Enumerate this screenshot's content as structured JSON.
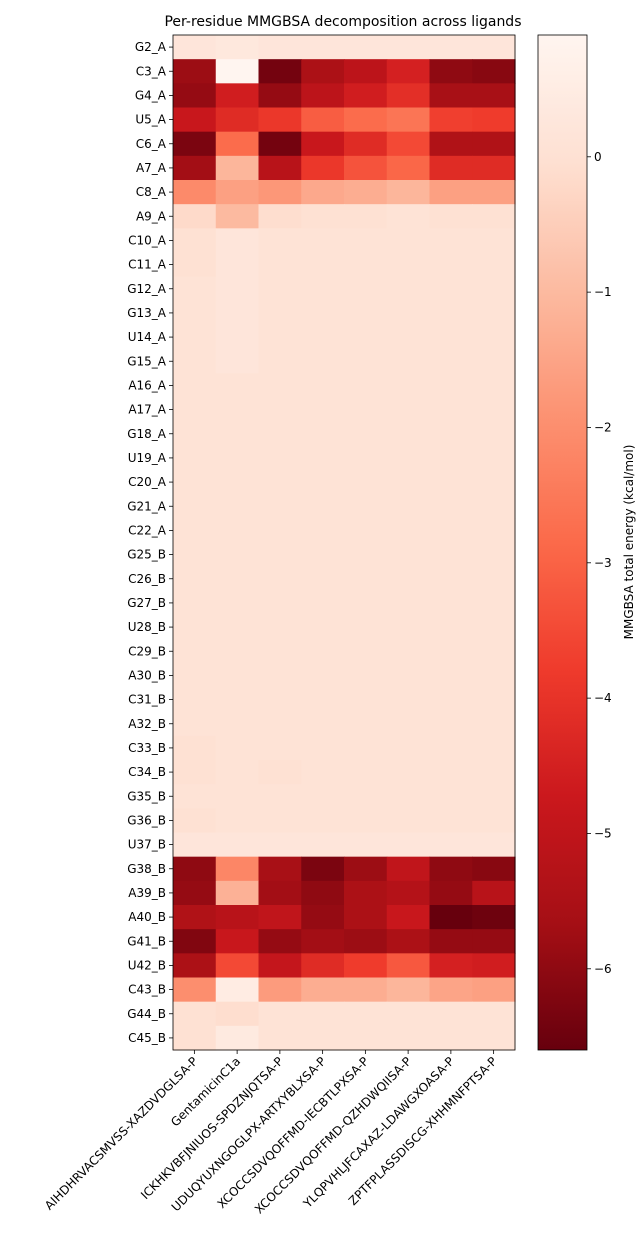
{
  "chart_data": {
    "type": "heatmap",
    "title": "Per-residue MMGBSA decomposition across ligands",
    "colorbar_label": "MMGBSA total energy (kcal/mol)",
    "colormap": "Reds_r",
    "vmin": -6.6,
    "vmax": 0.9,
    "colorbar_ticks": [
      0,
      -1,
      -2,
      -3,
      -4,
      -5,
      -6
    ],
    "colorbar_tick_labels": [
      "0",
      "−1",
      "−2",
      "−3",
      "−4",
      "−5",
      "−6"
    ],
    "columns": [
      "AIHDHRVACSMVSS-XAZDVDGLSA-P",
      "GentamicinC1a",
      "ICKHKVBFJNIUOS-SPDZNJQTSA-P",
      "UDUQYUXNGOGLPX-ARTXYBLXSA-P",
      "XCOCCSDVQOFFMD-IECBTLPXSA-P",
      "XCOCCSDVQOFFMD-QZHDWQIISA-P",
      "YLQPVHLJFCAXAZ-LDAWGXOASA-P",
      "ZPTFPLASSDISCG-XHHMNFPTSA-P"
    ],
    "rows": [
      "G2_A",
      "C3_A",
      "G4_A",
      "U5_A",
      "C6_A",
      "A7_A",
      "C8_A",
      "A9_A",
      "C10_A",
      "C11_A",
      "G12_A",
      "G13_A",
      "U14_A",
      "G15_A",
      "A16_A",
      "A17_A",
      "G18_A",
      "U19_A",
      "C20_A",
      "G21_A",
      "C22_A",
      "G25_B",
      "C26_B",
      "G27_B",
      "U28_B",
      "C29_B",
      "A30_B",
      "C31_B",
      "A32_B",
      "C33_B",
      "C34_B",
      "G35_B",
      "G36_B",
      "U37_B",
      "G38_B",
      "A39_B",
      "A40_B",
      "G41_B",
      "U42_B",
      "C43_B",
      "G44_B",
      "C45_B"
    ],
    "values": [
      [
        0.2,
        0.3,
        0.2,
        0.2,
        0.2,
        0.2,
        0.2,
        0.2
      ],
      [
        -5.8,
        0.9,
        -6.4,
        -5.5,
        -5.1,
        -4.5,
        -6.0,
        -6.1
      ],
      [
        -5.9,
        -4.6,
        -5.9,
        -5.1,
        -4.6,
        -4.1,
        -5.6,
        -5.6
      ],
      [
        -4.8,
        -4.2,
        -3.9,
        -3.1,
        -2.8,
        -2.6,
        -3.7,
        -3.8
      ],
      [
        -6.3,
        -2.8,
        -6.4,
        -4.8,
        -4.2,
        -3.5,
        -5.4,
        -5.4
      ],
      [
        -5.7,
        -1.1,
        -5.2,
        -3.9,
        -3.3,
        -2.9,
        -4.2,
        -4.2
      ],
      [
        -2.1,
        -1.6,
        -1.8,
        -1.4,
        -1.3,
        -1.1,
        -1.6,
        -1.6
      ],
      [
        -0.2,
        -1.0,
        -0.1,
        0.0,
        0.0,
        0.1,
        0.0,
        0.0
      ],
      [
        0.0,
        0.2,
        0.1,
        0.1,
        0.1,
        0.1,
        0.1,
        0.1
      ],
      [
        0.0,
        0.2,
        0.1,
        0.1,
        0.1,
        0.1,
        0.1,
        0.1
      ],
      [
        0.1,
        0.2,
        0.1,
        0.1,
        0.1,
        0.1,
        0.1,
        0.1
      ],
      [
        0.1,
        0.2,
        0.1,
        0.1,
        0.1,
        0.1,
        0.1,
        0.1
      ],
      [
        0.1,
        0.2,
        0.1,
        0.1,
        0.1,
        0.1,
        0.1,
        0.1
      ],
      [
        0.1,
        0.2,
        0.1,
        0.1,
        0.1,
        0.1,
        0.1,
        0.1
      ],
      [
        0.1,
        0.1,
        0.1,
        0.1,
        0.1,
        0.1,
        0.1,
        0.1
      ],
      [
        0.1,
        0.1,
        0.1,
        0.1,
        0.1,
        0.1,
        0.1,
        0.1
      ],
      [
        0.1,
        0.1,
        0.1,
        0.1,
        0.1,
        0.1,
        0.1,
        0.1
      ],
      [
        0.1,
        0.1,
        0.1,
        0.1,
        0.1,
        0.1,
        0.1,
        0.1
      ],
      [
        0.1,
        0.1,
        0.1,
        0.1,
        0.1,
        0.1,
        0.1,
        0.1
      ],
      [
        0.1,
        0.1,
        0.1,
        0.1,
        0.1,
        0.1,
        0.1,
        0.1
      ],
      [
        0.1,
        0.1,
        0.1,
        0.1,
        0.1,
        0.1,
        0.1,
        0.1
      ],
      [
        0.1,
        0.1,
        0.1,
        0.1,
        0.1,
        0.1,
        0.1,
        0.1
      ],
      [
        0.1,
        0.1,
        0.1,
        0.1,
        0.1,
        0.1,
        0.1,
        0.1
      ],
      [
        0.1,
        0.1,
        0.1,
        0.1,
        0.1,
        0.1,
        0.1,
        0.1
      ],
      [
        0.1,
        0.1,
        0.1,
        0.1,
        0.1,
        0.1,
        0.1,
        0.1
      ],
      [
        0.1,
        0.1,
        0.1,
        0.1,
        0.1,
        0.1,
        0.1,
        0.1
      ],
      [
        0.1,
        0.1,
        0.1,
        0.1,
        0.1,
        0.1,
        0.1,
        0.1
      ],
      [
        0.1,
        0.1,
        0.1,
        0.1,
        0.1,
        0.1,
        0.1,
        0.1
      ],
      [
        0.1,
        0.1,
        0.1,
        0.1,
        0.1,
        0.1,
        0.1,
        0.1
      ],
      [
        0.0,
        0.1,
        0.1,
        0.1,
        0.1,
        0.1,
        0.1,
        0.1
      ],
      [
        0.0,
        0.1,
        0.0,
        0.1,
        0.1,
        0.1,
        0.1,
        0.1
      ],
      [
        0.1,
        0.1,
        0.1,
        0.1,
        0.1,
        0.1,
        0.1,
        0.1
      ],
      [
        0.0,
        0.1,
        0.1,
        0.1,
        0.1,
        0.1,
        0.1,
        0.1
      ],
      [
        0.2,
        0.2,
        0.2,
        0.2,
        0.2,
        0.2,
        0.2,
        0.2
      ],
      [
        -6.0,
        -2.2,
        -5.6,
        -6.3,
        -5.8,
        -5.0,
        -6.0,
        -6.1
      ],
      [
        -5.9,
        -1.2,
        -5.7,
        -6.0,
        -5.5,
        -5.3,
        -5.9,
        -5.2
      ],
      [
        -5.4,
        -5.2,
        -5.0,
        -5.9,
        -5.5,
        -4.8,
        -6.6,
        -6.5
      ],
      [
        -6.2,
        -4.8,
        -5.9,
        -5.7,
        -5.8,
        -5.5,
        -5.9,
        -5.9
      ],
      [
        -5.5,
        -3.5,
        -4.9,
        -4.2,
        -3.8,
        -3.2,
        -4.5,
        -4.6
      ],
      [
        -2.0,
        0.5,
        -1.7,
        -1.3,
        -1.3,
        -1.1,
        -1.5,
        -1.6
      ],
      [
        0.0,
        -0.1,
        0.1,
        0.1,
        0.1,
        0.1,
        0.1,
        0.1
      ],
      [
        0.0,
        0.4,
        0.1,
        0.1,
        0.1,
        0.1,
        0.1,
        0.1
      ]
    ]
  }
}
